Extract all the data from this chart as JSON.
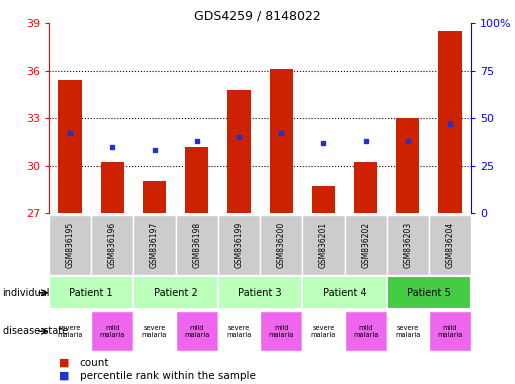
{
  "title": "GDS4259 / 8148022",
  "samples": [
    "GSM836195",
    "GSM836196",
    "GSM836197",
    "GSM836198",
    "GSM836199",
    "GSM836200",
    "GSM836201",
    "GSM836202",
    "GSM836203",
    "GSM836204"
  ],
  "bar_values": [
    35.4,
    30.2,
    29.0,
    31.2,
    34.8,
    36.1,
    28.7,
    30.2,
    33.0,
    38.5
  ],
  "percentile_percents": [
    42,
    35,
    33,
    38,
    40,
    42,
    37,
    38,
    38,
    47
  ],
  "y_min": 27,
  "y_max": 39,
  "y_ticks": [
    27,
    30,
    33,
    36,
    39
  ],
  "right_y_ticks": [
    0,
    25,
    50,
    75,
    100
  ],
  "right_y_labels": [
    "0",
    "25",
    "50",
    "75",
    "100%"
  ],
  "bar_color": "#cc2200",
  "percentile_color": "#2233cc",
  "patient_colors": [
    "#bbffbb",
    "#bbffbb",
    "#bbffbb",
    "#bbffbb",
    "#44cc44"
  ],
  "disease_severe_color": "#ffffff",
  "disease_mild_color": "#ee66ee",
  "sample_label_bg": "#cccccc",
  "bar_width": 0.55,
  "baseline": 27,
  "figwidth": 5.15,
  "figheight": 3.84,
  "dpi": 100
}
